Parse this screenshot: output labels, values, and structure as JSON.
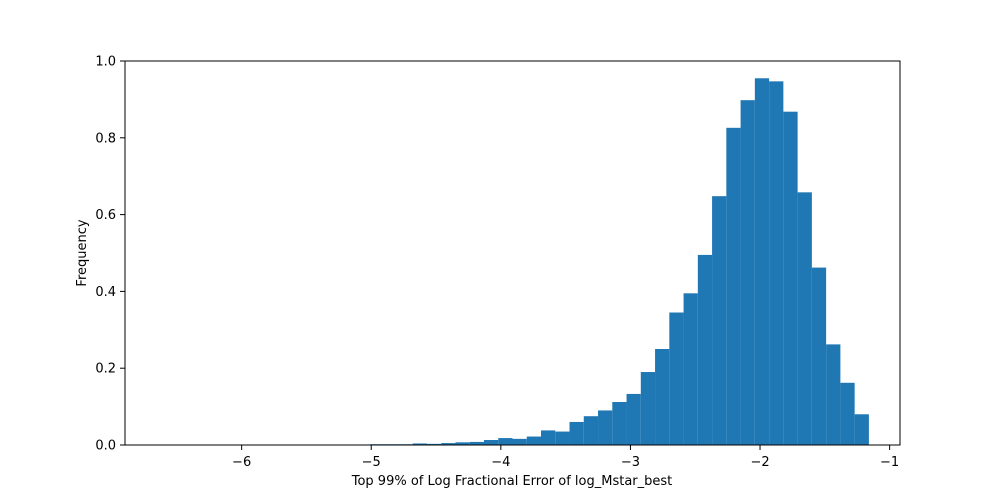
{
  "chart_data": {
    "type": "bar",
    "xlabel": "Top 99% of Log Fractional Error of log_Mstar_best",
    "ylabel": "Frequency",
    "xlim": [
      -6.9,
      -0.92
    ],
    "ylim": [
      0,
      1.0
    ],
    "grid": false,
    "bar_color": "#1f77b4",
    "x_ticks": [
      -6,
      -5,
      -4,
      -3,
      -2,
      -1
    ],
    "x_tick_labels": [
      "−6",
      "−5",
      "−4",
      "−3",
      "−2",
      "−1"
    ],
    "y_ticks": [
      0.0,
      0.2,
      0.4,
      0.6,
      0.8,
      1.0
    ],
    "y_tick_labels": [
      "0.0",
      "0.2",
      "0.4",
      "0.6",
      "0.8",
      "1.0"
    ],
    "bin_edges": [
      -6.66,
      -6.55,
      -6.44,
      -6.33,
      -6.22,
      -6.11,
      -6.0,
      -5.89,
      -5.78,
      -5.67,
      -5.56,
      -5.45,
      -5.34,
      -5.23,
      -5.12,
      -5.01,
      -4.9,
      -4.79,
      -4.68,
      -4.57,
      -4.46,
      -4.35,
      -4.24,
      -4.13,
      -4.02,
      -3.91,
      -3.8,
      -3.69,
      -3.58,
      -3.47,
      -3.36,
      -3.25,
      -3.14,
      -3.03,
      -2.92,
      -2.81,
      -2.7,
      -2.59,
      -2.48,
      -2.37,
      -2.26,
      -2.15,
      -2.04,
      -1.93,
      -1.82,
      -1.71,
      -1.6,
      -1.49,
      -1.38,
      -1.27,
      -1.16
    ],
    "values": [
      0.0,
      0.0,
      0.0,
      0.0,
      0.0,
      0.0,
      0.0,
      0.0,
      0.0,
      0.0,
      0.0,
      0.0,
      0.001,
      0.0,
      0.001,
      0.002,
      0.002,
      0.002,
      0.004,
      0.003,
      0.005,
      0.007,
      0.008,
      0.013,
      0.018,
      0.016,
      0.022,
      0.038,
      0.035,
      0.06,
      0.075,
      0.09,
      0.112,
      0.133,
      0.19,
      0.25,
      0.345,
      0.395,
      0.495,
      0.648,
      0.826,
      0.898,
      0.955,
      0.947,
      0.868,
      0.658,
      0.462,
      0.262,
      0.162,
      0.08
    ]
  }
}
